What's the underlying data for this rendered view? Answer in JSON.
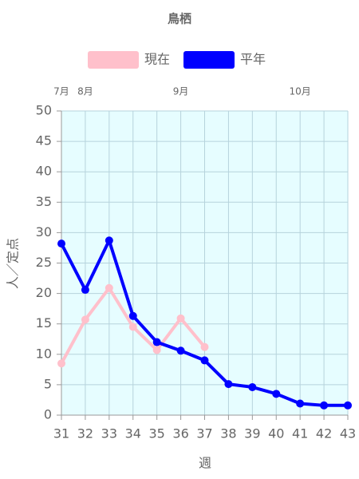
{
  "chart_data": {
    "type": "line",
    "title": "鳥栖",
    "x_label": "週",
    "y_label": "人／定点",
    "categories": [
      31,
      32,
      33,
      34,
      35,
      36,
      37,
      38,
      39,
      40,
      41,
      42,
      43
    ],
    "month_labels": [
      {
        "label": "7月",
        "week": 31
      },
      {
        "label": "8月",
        "week": 32
      },
      {
        "label": "9月",
        "week": 36
      },
      {
        "label": "10月",
        "week": 41
      }
    ],
    "series": [
      {
        "name": "現在",
        "color": "#ffc0cb",
        "values": [
          8.5,
          15.7,
          20.9,
          14.5,
          10.7,
          15.9,
          11.2,
          null,
          null,
          null,
          null,
          null,
          null
        ]
      },
      {
        "name": "平年",
        "color": "#0000ff",
        "values": [
          28.2,
          20.6,
          28.7,
          16.3,
          12.0,
          10.6,
          9.0,
          5.1,
          4.6,
          3.5,
          1.9,
          1.6,
          1.6
        ]
      }
    ],
    "ylim": [
      0,
      50
    ],
    "yticks": [
      0,
      5,
      10,
      15,
      20,
      25,
      30,
      35,
      40,
      45,
      50
    ],
    "grid": true,
    "background": "#e6fdff",
    "legend": "top"
  }
}
